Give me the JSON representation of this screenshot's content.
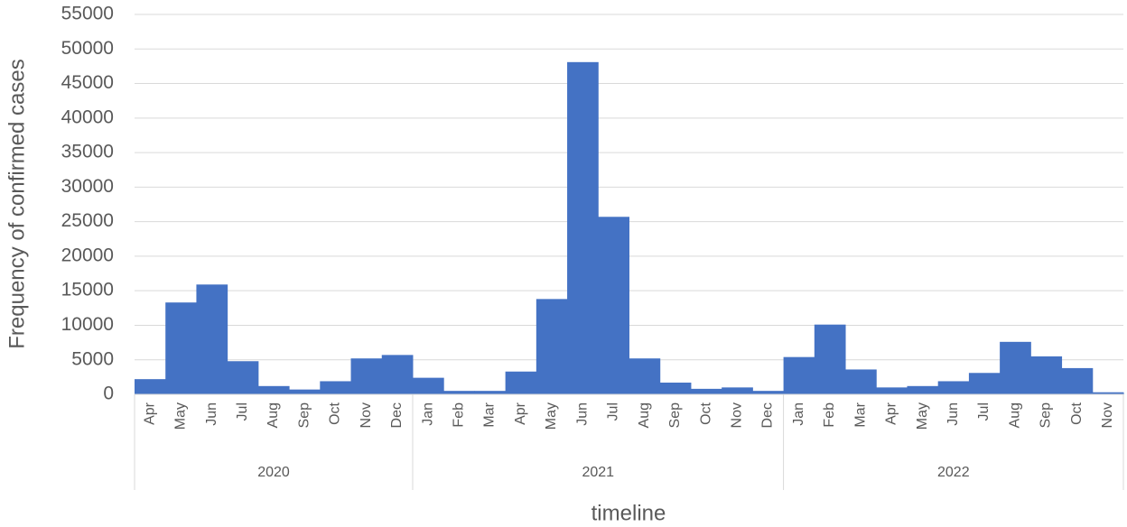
{
  "chart_data": {
    "type": "bar",
    "y_axis_title": "Frequency of confirmed cases",
    "x_axis_title": "timeline",
    "color": "#4472c4",
    "ylim": [
      0,
      55000
    ],
    "yticks": [
      0,
      5000,
      10000,
      15000,
      20000,
      25000,
      30000,
      35000,
      40000,
      45000,
      50000,
      55000
    ],
    "grid": true,
    "groups": [
      {
        "label": "2020",
        "categories": [
          "Apr",
          "May",
          "Jun",
          "Jul",
          "Aug",
          "Sep",
          "Oct",
          "Nov",
          "Dec"
        ],
        "values": [
          2200,
          13300,
          15900,
          4800,
          1200,
          700,
          1900,
          5200,
          5700
        ]
      },
      {
        "label": "2021",
        "categories": [
          "Jan",
          "Feb",
          "Mar",
          "Apr",
          "May",
          "Jun",
          "Jul",
          "Aug",
          "Sep",
          "Oct",
          "Nov",
          "Dec"
        ],
        "values": [
          2400,
          500,
          500,
          3300,
          13800,
          48100,
          25700,
          5200,
          1700,
          800,
          1000,
          500
        ]
      },
      {
        "label": "2022",
        "categories": [
          "Jan",
          "Feb",
          "Mar",
          "Apr",
          "May",
          "Jun",
          "Jul",
          "Aug",
          "Sep",
          "Oct",
          "Nov"
        ],
        "values": [
          5400,
          10100,
          3600,
          1000,
          1200,
          1900,
          3100,
          7600,
          5500,
          3800,
          300
        ]
      }
    ]
  }
}
